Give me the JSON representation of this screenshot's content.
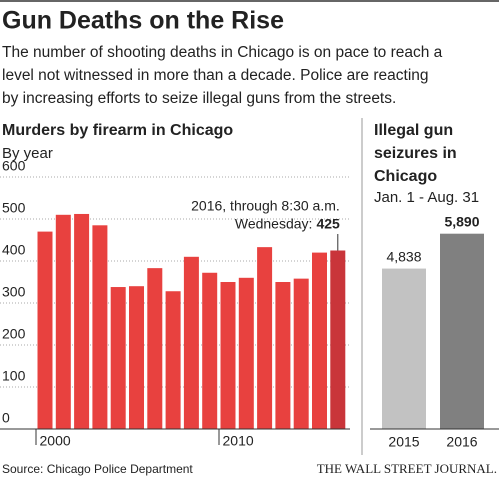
{
  "title": "Gun Deaths on the Rise",
  "subtitle": [
    "The number of shooting deaths in Chicago is on pace to reach a",
    "level not witnessed in more than a decade. Police are reacting",
    "by increasing efforts to seize illegal guns from the streets."
  ],
  "source": "Source: Chicago Police Department",
  "publisher": "THE WALL STREET JOURNAL.",
  "chart_data": [
    {
      "type": "bar",
      "title": [
        "Murders by firearm in Chicago"
      ],
      "subtitle": "By year",
      "categories": [
        "2000",
        null,
        null,
        null,
        null,
        null,
        null,
        null,
        null,
        null,
        "2010",
        null,
        null,
        null,
        null,
        null,
        null
      ],
      "values": [
        470,
        510,
        512,
        485,
        338,
        340,
        383,
        328,
        410,
        372,
        350,
        360,
        433,
        350,
        358,
        420,
        425
      ],
      "colors": [
        "#e8413f",
        "#e8413f",
        "#e8413f",
        "#e8413f",
        "#e8413f",
        "#e8413f",
        "#e8413f",
        "#e8413f",
        "#e8413f",
        "#e8413f",
        "#e8413f",
        "#e8413f",
        "#e8413f",
        "#e8413f",
        "#e8413f",
        "#e8413f",
        "#c9353a"
      ],
      "annotation": [
        "2016, through 8:30 a.m.",
        "Wednesday:"
      ],
      "ylim": [
        0,
        600
      ],
      "yticks": [
        0,
        100,
        200,
        300,
        400,
        500,
        600
      ],
      "grid": true
    },
    {
      "type": "bar",
      "title": [
        "Illegal gun",
        "seizures in",
        "Chicago"
      ],
      "subtitle": "Jan. 1 - Aug. 31",
      "categories": [
        "2015",
        "2016"
      ],
      "values": [
        4838,
        5890
      ],
      "value_labels": [
        "4,838",
        "5,890"
      ],
      "colors": [
        "#c2c2c2",
        "#808080"
      ],
      "ylim": [
        0,
        7600
      ]
    }
  ]
}
